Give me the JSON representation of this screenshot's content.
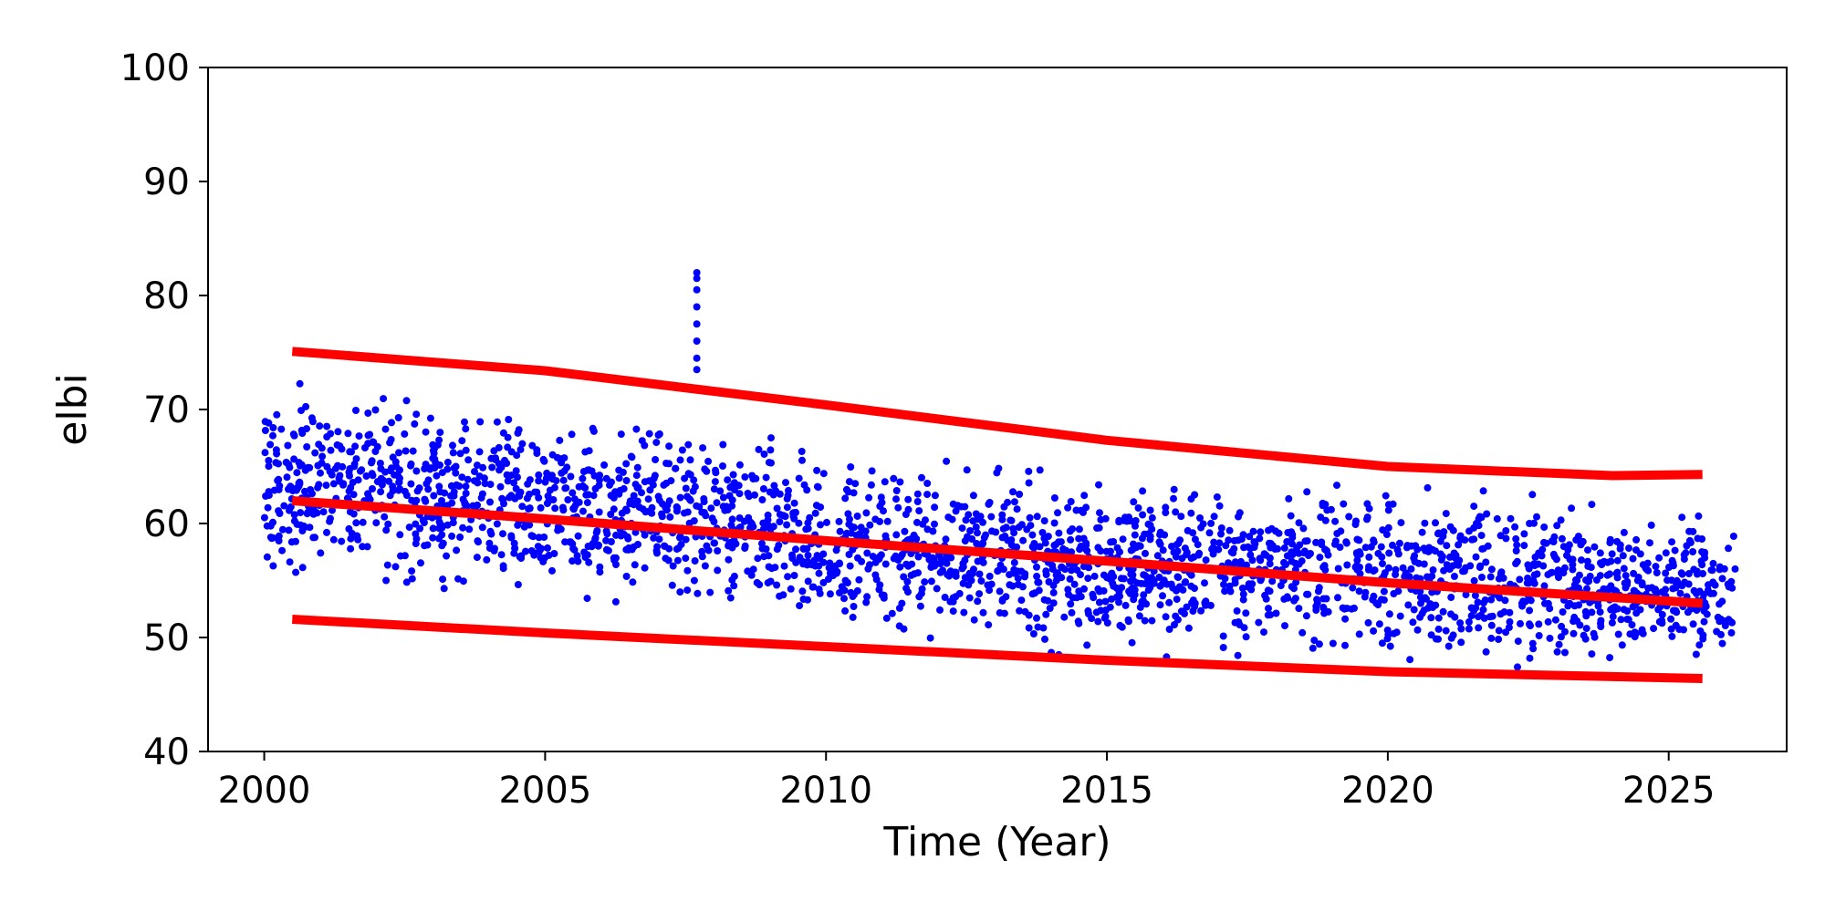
{
  "chart_data": {
    "type": "scatter",
    "title": "",
    "xlabel": "Time (Year)",
    "ylabel": "elbi",
    "xlim": [
      1999.0,
      2027.1
    ],
    "ylim": [
      40,
      100
    ],
    "xticks": [
      2000,
      2005,
      2010,
      2015,
      2020,
      2025
    ],
    "yticks": [
      40,
      50,
      60,
      70,
      80,
      90,
      100
    ],
    "grid": false,
    "legend": "none",
    "colors": {
      "points": "#0000ff",
      "fit_lines": "#ff0000"
    },
    "scatter_envelope": [
      {
        "x": 2000.0,
        "low": 52,
        "high": 75
      },
      {
        "x": 2002.0,
        "low": 52,
        "high": 74
      },
      {
        "x": 2004.0,
        "low": 52,
        "high": 72
      },
      {
        "x": 2006.0,
        "low": 51,
        "high": 71
      },
      {
        "x": 2008.0,
        "low": 51,
        "high": 70
      },
      {
        "x": 2010.0,
        "low": 48,
        "high": 68
      },
      {
        "x": 2012.0,
        "low": 48,
        "high": 67
      },
      {
        "x": 2014.0,
        "low": 47,
        "high": 66
      },
      {
        "x": 2016.0,
        "low": 47,
        "high": 65
      },
      {
        "x": 2018.0,
        "low": 47,
        "high": 65
      },
      {
        "x": 2020.0,
        "low": 46,
        "high": 66
      },
      {
        "x": 2022.0,
        "low": 46,
        "high": 65
      },
      {
        "x": 2024.0,
        "low": 46,
        "high": 63
      },
      {
        "x": 2026.2,
        "low": 46,
        "high": 62
      }
    ],
    "outliers": {
      "x": 2007.7,
      "y_values": [
        73.5,
        74.5,
        76,
        77.5,
        79,
        80.5,
        81.5,
        82
      ]
    },
    "series": [
      {
        "role": "upper-bound",
        "x": [
          2000.5,
          2005,
          2010,
          2015,
          2020,
          2024,
          2025.6
        ],
        "values": [
          75.1,
          73.4,
          70.4,
          67.3,
          65.0,
          64.2,
          64.3
        ]
      },
      {
        "role": "trend",
        "x": [
          2000.5,
          2005,
          2010,
          2015,
          2020,
          2025.6
        ],
        "values": [
          62.0,
          60.4,
          58.5,
          56.7,
          54.8,
          53.0
        ]
      },
      {
        "role": "lower-bound",
        "x": [
          2000.5,
          2005,
          2010,
          2015,
          2020,
          2025.6
        ],
        "values": [
          51.6,
          50.4,
          49.2,
          48.0,
          47.0,
          46.4
        ]
      }
    ]
  }
}
